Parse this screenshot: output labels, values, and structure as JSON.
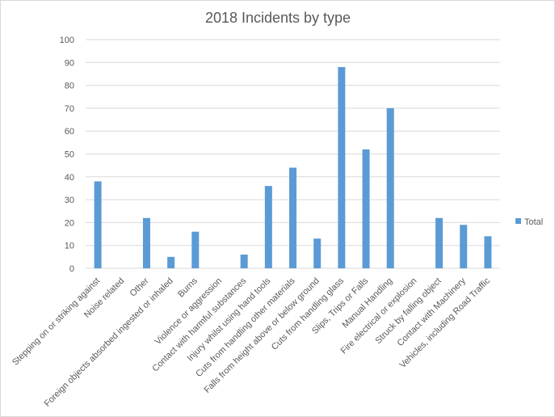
{
  "chart_data": {
    "type": "bar",
    "title": "2018 Incidents by type",
    "xlabel": "",
    "ylabel": "",
    "ylim": [
      0,
      100
    ],
    "yticks": [
      0,
      10,
      20,
      30,
      40,
      50,
      60,
      70,
      80,
      90,
      100
    ],
    "grid": true,
    "legend_position": "right",
    "bar_color": "#5b9bd5",
    "categories": [
      "Stepping on or striking against",
      "Noise related",
      "Other",
      "Foreign objects absorbed ingested or inhaled",
      "Burns",
      "Violence or aggression",
      "Contact with harmful substances",
      "Injury whilst using hand tools",
      "Cuts from handling other materials",
      "Falls from height above or below ground",
      "Cuts from handling glass",
      "Slips, Trips or Falls",
      "Manual Handling",
      "Fire electrical or explosion",
      "Struck by falling object",
      "Contact with Machinery",
      "Vehicles, including Road Traffic"
    ],
    "series": [
      {
        "name": "Total",
        "values": [
          38,
          0,
          22,
          5,
          16,
          0,
          6,
          36,
          44,
          13,
          88,
          52,
          70,
          0,
          22,
          19,
          14
        ]
      }
    ]
  }
}
